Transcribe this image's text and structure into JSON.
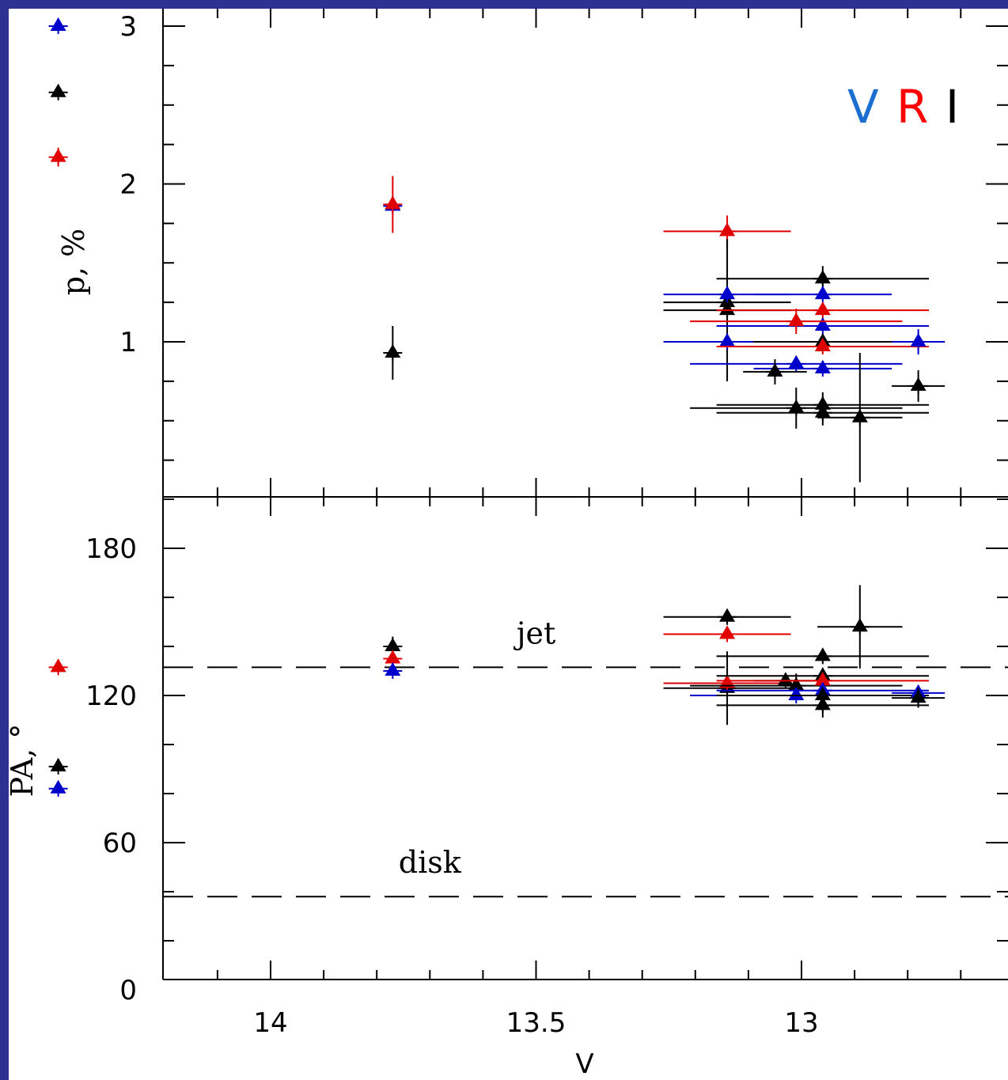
{
  "chart_data": {
    "type": "scatter",
    "xlabel": "V",
    "xlim": [
      14.5,
      12.3
    ],
    "xticks": [
      14,
      13.5,
      13
    ],
    "xtick_labels": [
      "14",
      "13.5",
      "13"
    ],
    "legend": {
      "placement": "top-right",
      "entries": [
        {
          "label": "V",
          "color": "#1a6fd1"
        },
        {
          "label": "R",
          "color": "#ff0000"
        },
        {
          "label": "I",
          "color": "#000000"
        }
      ]
    },
    "series_colors": {
      "V": "#0000cc",
      "R": "#e00000",
      "I": "#000000"
    },
    "panels": [
      {
        "id": "top",
        "ylabel": "p, %",
        "ylim": [
          0,
          3.1
        ],
        "yticks": [
          1,
          2,
          3
        ],
        "ytick_labels": [
          "1",
          "2",
          "3"
        ],
        "points": [
          {
            "band": "V",
            "x": 14.4,
            "y": 3.0
          },
          {
            "band": "I",
            "x": 14.4,
            "y": 2.58
          },
          {
            "band": "R",
            "x": 14.4,
            "y": 2.17,
            "yerr": 0.06
          },
          {
            "band": "V",
            "x": 13.77,
            "y": 1.86
          },
          {
            "band": "R",
            "x": 13.77,
            "y": 1.87,
            "yerr": 0.18
          },
          {
            "band": "I",
            "x": 13.77,
            "y": 0.93,
            "yerr": 0.17
          },
          {
            "band": "R",
            "x": 13.14,
            "y": 1.7,
            "xerr": 0.12,
            "yerr": 0.1
          },
          {
            "band": "I",
            "x": 13.14,
            "y": 1.2,
            "xerr": 0.12,
            "yerr": 0.45
          },
          {
            "band": "I",
            "x": 13.14,
            "y": 1.25,
            "xerr": 0.12
          },
          {
            "band": "V",
            "x": 13.14,
            "y": 1.3,
            "xerr": 0.12
          },
          {
            "band": "V",
            "x": 13.14,
            "y": 1.0,
            "xerr": 0.12
          },
          {
            "band": "I",
            "x": 12.96,
            "y": 1.4,
            "xerr": 0.2,
            "yerr": 0.08
          },
          {
            "band": "V",
            "x": 12.96,
            "y": 1.3,
            "xerr": 0.13
          },
          {
            "band": "R",
            "x": 12.96,
            "y": 1.2,
            "xerr": 0.2
          },
          {
            "band": "V",
            "x": 12.96,
            "y": 1.1,
            "xerr": 0.2
          },
          {
            "band": "I",
            "x": 12.96,
            "y": 1.0,
            "xerr": 0.13,
            "yerr": 0.05
          },
          {
            "band": "R",
            "x": 12.96,
            "y": 0.97,
            "xerr": 0.2
          },
          {
            "band": "V",
            "x": 12.96,
            "y": 0.83,
            "xerr": 0.13
          },
          {
            "band": "I",
            "x": 12.96,
            "y": 0.6,
            "xerr": 0.2,
            "yerr": 0.08
          },
          {
            "band": "I",
            "x": 12.96,
            "y": 0.55,
            "xerr": 0.2,
            "yerr": 0.08
          },
          {
            "band": "R",
            "x": 13.01,
            "y": 1.13,
            "xerr": 0.2,
            "yerr": 0.08
          },
          {
            "band": "V",
            "x": 13.01,
            "y": 0.86,
            "xerr": 0.2
          },
          {
            "band": "I",
            "x": 13.01,
            "y": 0.58,
            "xerr": 0.2,
            "yerr": 0.13
          },
          {
            "band": "I",
            "x": 13.05,
            "y": 0.81,
            "xerr": 0.06,
            "yerr": 0.08
          },
          {
            "band": "I",
            "x": 12.89,
            "y": 0.52,
            "xerr": 0.08,
            "yerr": 0.41
          },
          {
            "band": "V",
            "x": 12.78,
            "y": 1.0,
            "xerr": 0.05,
            "yerr": 0.08
          },
          {
            "band": "I",
            "x": 12.78,
            "y": 0.72,
            "xerr": 0.05,
            "yerr": 0.1
          }
        ]
      },
      {
        "id": "bottom",
        "ylabel": "PA, °",
        "ylim": [
          0,
          200
        ],
        "yticks": [
          0,
          60,
          120,
          180
        ],
        "ytick_labels": [
          "0",
          "60",
          "120",
          "180"
        ],
        "reference_lines": [
          {
            "y": 131.5,
            "label": "jet",
            "label_x": 13.5
          },
          {
            "y": 38,
            "label": "disk",
            "label_x": 13.7
          }
        ],
        "points": [
          {
            "band": "R",
            "x": 14.4,
            "y": 131.5
          },
          {
            "band": "I",
            "x": 14.4,
            "y": 91
          },
          {
            "band": "V",
            "x": 14.4,
            "y": 82
          },
          {
            "band": "I",
            "x": 13.77,
            "y": 140,
            "yerr": 4
          },
          {
            "band": "R",
            "x": 13.77,
            "y": 135
          },
          {
            "band": "V",
            "x": 13.77,
            "y": 130
          },
          {
            "band": "I",
            "x": 13.14,
            "y": 152,
            "xerr": 0.12
          },
          {
            "band": "R",
            "x": 13.14,
            "y": 145,
            "xerr": 0.12
          },
          {
            "band": "I",
            "x": 13.14,
            "y": 123,
            "xerr": 0.12,
            "yerr": 15
          },
          {
            "band": "R",
            "x": 13.14,
            "y": 125,
            "xerr": 0.12
          },
          {
            "band": "I",
            "x": 13.03,
            "y": 126,
            "xerr": 0.06
          },
          {
            "band": "I",
            "x": 13.01,
            "y": 124,
            "xerr": 0.2,
            "yerr": 5
          },
          {
            "band": "V",
            "x": 13.01,
            "y": 120,
            "xerr": 0.2
          },
          {
            "band": "I",
            "x": 12.96,
            "y": 136,
            "xerr": 0.2
          },
          {
            "band": "I",
            "x": 12.96,
            "y": 128,
            "xerr": 0.2
          },
          {
            "band": "R",
            "x": 12.96,
            "y": 126,
            "xerr": 0.2
          },
          {
            "band": "V",
            "x": 12.96,
            "y": 122,
            "xerr": 0.2
          },
          {
            "band": "I",
            "x": 12.96,
            "y": 120,
            "xerr": 0.2
          },
          {
            "band": "I",
            "x": 12.96,
            "y": 116,
            "xerr": 0.2,
            "yerr": 5
          },
          {
            "band": "I",
            "x": 12.89,
            "y": 148,
            "xerr": 0.08,
            "yerr": 17
          },
          {
            "band": "V",
            "x": 12.78,
            "y": 121,
            "xerr": 0.05
          },
          {
            "band": "I",
            "x": 12.78,
            "y": 119,
            "xerr": 0.05,
            "yerr": 4
          }
        ]
      }
    ]
  }
}
